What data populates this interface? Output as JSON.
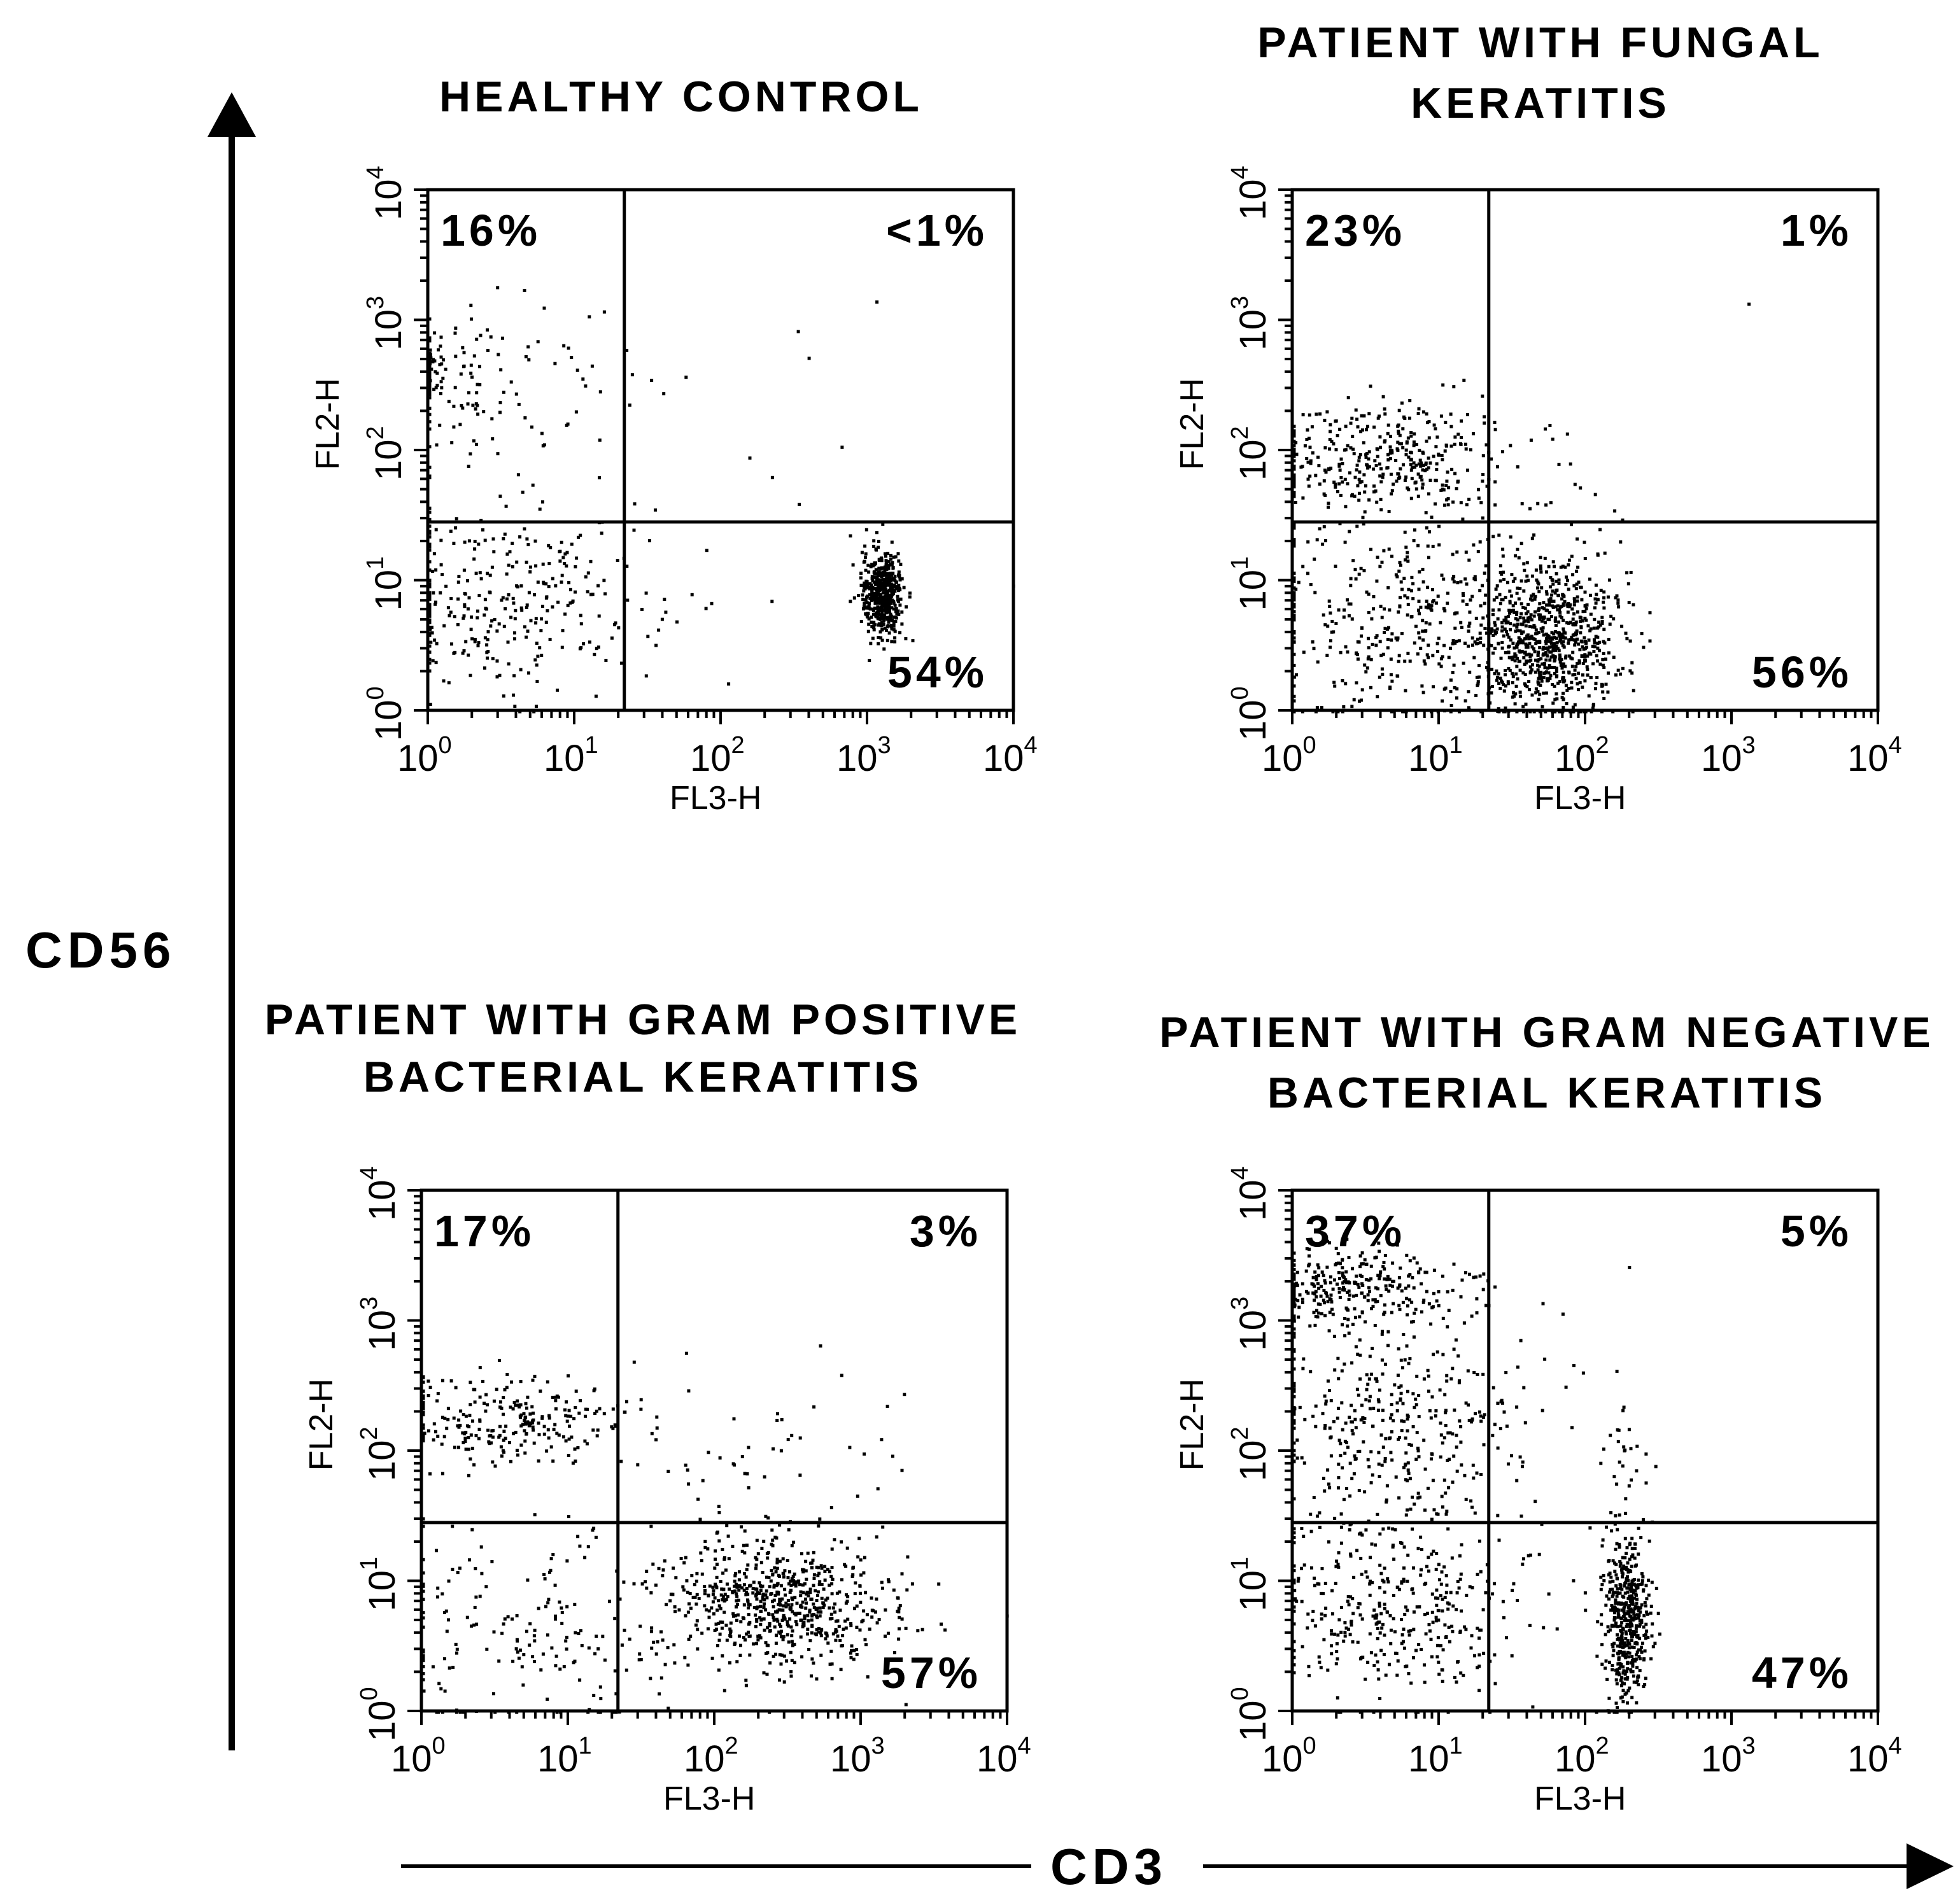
{
  "axes": {
    "y_label": "CD56",
    "x_label": "CD3"
  },
  "chart_data": [
    {
      "type": "scatter",
      "title": [
        "HEALTHY CONTROL"
      ],
      "xlabel": "FL3-H",
      "ylabel": "FL2-H",
      "xscale": "log",
      "yscale": "log",
      "xlim": [
        1,
        10000
      ],
      "ylim": [
        1,
        10000
      ],
      "x_ticks": [
        "10^0",
        "10^1",
        "10^2",
        "10^3",
        "10^4"
      ],
      "y_ticks": [
        "10^0",
        "10^1",
        "10^2",
        "10^3",
        "10^4"
      ],
      "gate": {
        "x": 22,
        "y": 28
      },
      "quadrants": {
        "upper_left": "16%",
        "upper_right": "<1%",
        "lower_right": "54%"
      },
      "clusters": [
        {
          "n": 90,
          "x": 1.1,
          "y": 420,
          "sx": 0.18,
          "sy": 0.2
        },
        {
          "n": 70,
          "x": 2.5,
          "y": 300,
          "sx": 0.55,
          "sy": 0.35
        },
        {
          "n": 320,
          "x": 3.5,
          "y": 7,
          "sx": 0.5,
          "sy": 0.35
        },
        {
          "n": 480,
          "x": 1250,
          "y": 8,
          "sx": 0.07,
          "sy": 0.17
        },
        {
          "n": 18,
          "x": 120,
          "y": 150,
          "sx": 0.7,
          "sy": 0.7
        }
      ]
    },
    {
      "type": "scatter",
      "title": [
        "PATIENT WITH FUNGAL",
        "KERATITIS"
      ],
      "xlabel": "FL3-H",
      "ylabel": "FL2-H",
      "xscale": "log",
      "yscale": "log",
      "xlim": [
        1,
        10000
      ],
      "ylim": [
        1,
        10000
      ],
      "x_ticks": [
        "10^0",
        "10^1",
        "10^2",
        "10^3",
        "10^4"
      ],
      "y_ticks": [
        "10^0",
        "10^1",
        "10^2",
        "10^3",
        "10^4"
      ],
      "gate": {
        "x": 22,
        "y": 28
      },
      "quadrants": {
        "upper_left": "23%",
        "upper_right": "1%",
        "lower_right": "56%"
      },
      "clusters": [
        {
          "n": 380,
          "x": 4,
          "y": 90,
          "sx": 0.45,
          "sy": 0.22
        },
        {
          "n": 420,
          "x": 5,
          "y": 5,
          "sx": 0.55,
          "sy": 0.4
        },
        {
          "n": 800,
          "x": 55,
          "y": 3.5,
          "sx": 0.25,
          "sy": 0.3
        },
        {
          "n": 14,
          "x": 50,
          "y": 40,
          "sx": 0.3,
          "sy": 0.2
        },
        {
          "n": 1,
          "x": 1300,
          "y": 1400,
          "sx": 0.01,
          "sy": 0.01
        }
      ]
    },
    {
      "type": "scatter",
      "title": [
        "PATIENT WITH GRAM POSITIVE",
        "BACTERIAL KERATITIS"
      ],
      "xlabel": "FL3-H",
      "ylabel": "FL2-H",
      "xscale": "log",
      "yscale": "log",
      "xlim": [
        1,
        10000
      ],
      "ylim": [
        1,
        10000
      ],
      "x_ticks": [
        "10^0",
        "10^1",
        "10^2",
        "10^3",
        "10^4"
      ],
      "y_ticks": [
        "10^0",
        "10^1",
        "10^2",
        "10^3",
        "10^4"
      ],
      "gate": {
        "x": 22,
        "y": 28
      },
      "quadrants": {
        "upper_left": "17%",
        "upper_right": "3%",
        "lower_right": "57%"
      },
      "clusters": [
        {
          "n": 260,
          "x": 4,
          "y": 170,
          "sx": 0.45,
          "sy": 0.18
        },
        {
          "n": 190,
          "x": 5,
          "y": 4,
          "sx": 0.55,
          "sy": 0.45
        },
        {
          "n": 700,
          "x": 260,
          "y": 7,
          "sx": 0.4,
          "sy": 0.25
        },
        {
          "n": 45,
          "x": 230,
          "y": 90,
          "sx": 0.45,
          "sy": 0.35
        }
      ]
    },
    {
      "type": "scatter",
      "title": [
        "PATIENT WITH GRAM NEGATIVE",
        "BACTERIAL KERATITIS"
      ],
      "xlabel": "FL3-H",
      "ylabel": "FL2-H",
      "xscale": "log",
      "yscale": "log",
      "xlim": [
        1,
        10000
      ],
      "ylim": [
        1,
        10000
      ],
      "x_ticks": [
        "10^0",
        "10^1",
        "10^2",
        "10^3",
        "10^4"
      ],
      "y_ticks": [
        "10^0",
        "10^1",
        "10^2",
        "10^3",
        "10^4"
      ],
      "gate": {
        "x": 22,
        "y": 28
      },
      "quadrants": {
        "upper_left": "37%",
        "upper_right": "5%",
        "lower_right": "47%"
      },
      "clusters": [
        {
          "n": 300,
          "x": 2.5,
          "y": 1800,
          "sx": 0.35,
          "sy": 0.15
        },
        {
          "n": 380,
          "x": 4.5,
          "y": 150,
          "sx": 0.45,
          "sy": 0.45
        },
        {
          "n": 380,
          "x": 4.5,
          "y": 6,
          "sx": 0.45,
          "sy": 0.35
        },
        {
          "n": 480,
          "x": 190,
          "y": 5,
          "sx": 0.08,
          "sy": 0.32
        },
        {
          "n": 35,
          "x": 190,
          "y": 80,
          "sx": 0.1,
          "sy": 0.35
        },
        {
          "n": 12,
          "x": 90,
          "y": 300,
          "sx": 0.35,
          "sy": 0.4
        }
      ]
    }
  ]
}
